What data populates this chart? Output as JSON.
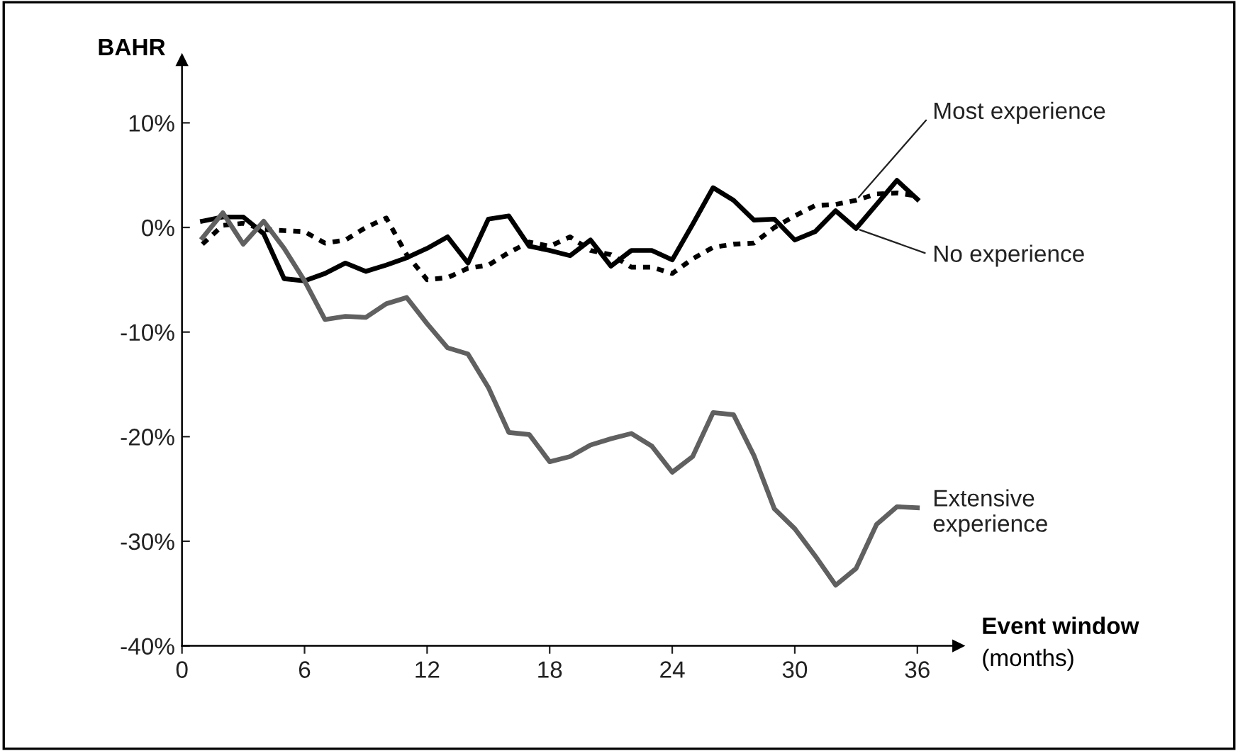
{
  "chart_data": {
    "type": "line",
    "ylabel": "BAHR",
    "xlabel": "Event window\n(months)",
    "x": [
      1,
      2,
      3,
      4,
      5,
      6,
      7,
      8,
      9,
      10,
      11,
      12,
      13,
      14,
      15,
      16,
      17,
      18,
      19,
      20,
      21,
      22,
      23,
      24,
      25,
      26,
      27,
      28,
      29,
      30,
      31,
      32,
      33,
      34,
      35,
      36
    ],
    "series": [
      {
        "name": "Most experience",
        "color": "#000000",
        "line_style": "dotted",
        "values": [
          -1.6,
          0.2,
          0.4,
          -0.2,
          -0.3,
          -0.4,
          -1.5,
          -1.2,
          0,
          0.9,
          -2.6,
          -5.0,
          -4.8,
          -3.9,
          -3.6,
          -2.4,
          -1.4,
          -1.8,
          -0.9,
          -2.2,
          -2.6,
          -3.8,
          -3.8,
          -4.4,
          -3.0,
          -1.9,
          -1.6,
          -1.5,
          0,
          1.1,
          2.1,
          2.2,
          2.6,
          3.2,
          3.3,
          3.0
        ]
      },
      {
        "name": "No experience",
        "color": "#000000",
        "line_style": "solid",
        "values": [
          0.6,
          1.0,
          1.0,
          -0.6,
          -4.9,
          -5.1,
          -4.4,
          -3.4,
          -4.2,
          -3.6,
          -2.9,
          -2.0,
          -0.9,
          -3.4,
          0.8,
          1.1,
          -1.8,
          -2.2,
          -2.7,
          -1.2,
          -3.7,
          -2.2,
          -2.2,
          -3.1,
          0.3,
          3.8,
          2.6,
          0.7,
          0.8,
          -1.2,
          -0.4,
          1.6,
          -0.1,
          2.2,
          4.5,
          2.7
        ]
      },
      {
        "name": "Extensive\nexperience",
        "color": "#606060",
        "line_style": "solid",
        "values": [
          -1.0,
          1.4,
          -1.6,
          0.6,
          -2.0,
          -5.1,
          -8.8,
          -8.5,
          -8.6,
          -7.3,
          -6.7,
          -9.2,
          -11.5,
          -12.1,
          -15.3,
          -19.6,
          -19.8,
          -22.4,
          -21.9,
          -20.8,
          -20.2,
          -19.7,
          -20.9,
          -23.4,
          -21.9,
          -17.7,
          -17.9,
          -21.8,
          -26.9,
          -28.8,
          -31.4,
          -34.2,
          -32.6,
          -28.4,
          -26.7,
          -26.8
        ]
      }
    ],
    "xlim": [
      0,
      38
    ],
    "ylim": [
      -40,
      16
    ],
    "xticks": [
      0,
      6,
      12,
      18,
      24,
      30,
      36
    ],
    "yticks": [
      {
        "value": -40,
        "label": "-40%"
      },
      {
        "value": -30,
        "label": "-30%"
      },
      {
        "value": -20,
        "label": "-20%"
      },
      {
        "value": -10,
        "label": "-10%"
      },
      {
        "value": 0,
        "label": "0%"
      },
      {
        "value": 10,
        "label": "10%"
      }
    ],
    "grid": false,
    "legend": false,
    "marker": "none"
  }
}
